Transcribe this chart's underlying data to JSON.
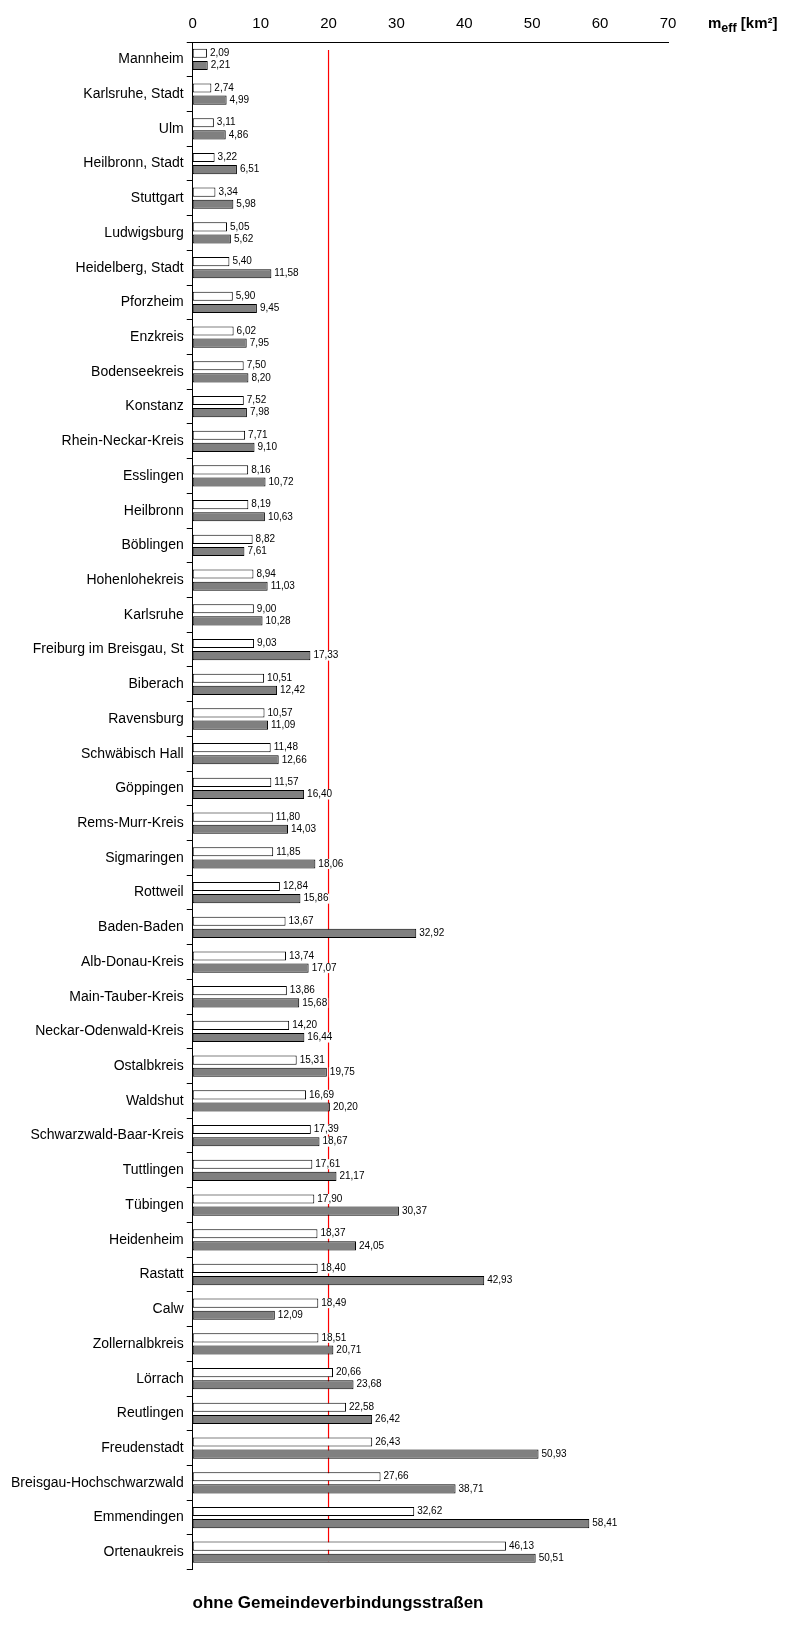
{
  "chart_data": {
    "type": "bar",
    "orientation": "horizontal",
    "title": "ohne Gemeindeverbindungsstraßen",
    "xlabel": "m$_{eff}$ [km²]",
    "categories": [
      "Mannheim",
      "Karlsruhe, Stadt",
      "Ulm",
      "Heilbronn, Stadt",
      "Stuttgart",
      "Ludwigsburg",
      "Heidelberg, Stadt",
      "Pforzheim",
      "Enzkreis",
      "Bodenseekreis",
      "Konstanz",
      "Rhein-Neckar-Kreis",
      "Esslingen",
      "Heilbronn",
      "Böblingen",
      "Hohenlohekreis",
      "Karlsruhe",
      "Freiburg im Breisgau, St",
      "Biberach",
      "Ravensburg",
      "Schwäbisch Hall",
      "Göppingen",
      "Rems-Murr-Kreis",
      "Sigmaringen",
      "Rottweil",
      "Baden-Baden",
      "Alb-Donau-Kreis",
      "Main-Tauber-Kreis",
      "Neckar-Odenwald-Kreis",
      "Ostalbkreis",
      "Waldshut",
      "Schwarzwald-Baar-Kreis",
      "Tuttlingen",
      "Tübingen",
      "Heidenheim",
      "Rastatt",
      "Calw",
      "Zollernalbkreis",
      "Lörrach",
      "Reutlingen",
      "Freudenstadt",
      "Breisgau-Hochschwarzwald",
      "Emmendingen",
      "Ortenaukreis"
    ],
    "series": [
      {
        "color": "#ffffff",
        "values": [
          2.09,
          2.74,
          3.11,
          3.22,
          3.34,
          5.05,
          5.4,
          5.9,
          6.02,
          7.5,
          7.52,
          7.71,
          8.16,
          8.19,
          8.82,
          8.94,
          9.0,
          9.03,
          10.51,
          10.57,
          11.48,
          11.57,
          11.8,
          11.85,
          12.84,
          13.67,
          13.74,
          13.86,
          14.2,
          15.31,
          16.69,
          17.39,
          17.61,
          17.9,
          18.37,
          18.4,
          18.49,
          18.51,
          20.66,
          22.58,
          26.43,
          27.66,
          32.62,
          46.13
        ],
        "value_labels": [
          "2,09",
          "2,74",
          "3,11",
          "3,22",
          "3,34",
          "5,05",
          "5,40",
          "5,90",
          "6,02",
          "7,50",
          "7,52",
          "7,71",
          "8,16",
          "8,19",
          "8,82",
          "8,94",
          "9,00",
          "9,03",
          "10,51",
          "10,57",
          "11,48",
          "11,57",
          "11,80",
          "11,85",
          "12,84",
          "13,67",
          "13,74",
          "13,86",
          "14,20",
          "15,31",
          "16,69",
          "17,39",
          "17,61",
          "17,90",
          "18,37",
          "18,40",
          "18,49",
          "18,51",
          "20,66",
          "22,58",
          "26,43",
          "27,66",
          "32,62",
          "46,13"
        ]
      },
      {
        "color": "#808080",
        "values": [
          2.21,
          4.99,
          4.86,
          6.51,
          5.98,
          5.62,
          11.58,
          9.45,
          7.95,
          8.2,
          7.98,
          9.1,
          10.72,
          10.63,
          7.61,
          11.03,
          10.28,
          17.33,
          12.42,
          11.09,
          12.66,
          16.4,
          14.03,
          18.06,
          15.86,
          32.92,
          17.07,
          15.68,
          16.44,
          19.75,
          20.2,
          18.67,
          21.17,
          30.37,
          24.05,
          42.93,
          12.09,
          20.71,
          23.68,
          26.42,
          50.93,
          38.71,
          58.41,
          50.51
        ],
        "value_labels": [
          "2,21",
          "4,99",
          "4,86",
          "6,51",
          "5,98",
          "5,62",
          "11,58",
          "9,45",
          "7,95",
          "8,20",
          "7,98",
          "9,10",
          "10,72",
          "10,63",
          "7,61",
          "11,03",
          "10,28",
          "17,33",
          "12,42",
          "11,09",
          "12,66",
          "16,40",
          "14,03",
          "18,06",
          "15,86",
          "32,92",
          "17,07",
          "15,68",
          "16,44",
          "19,75",
          "20,20",
          "18,67",
          "21,17",
          "30,37",
          "24,05",
          "42,93",
          "12,09",
          "20,71",
          "23,68",
          "26,42",
          "50,93",
          "38,71",
          "58,41",
          "50,51"
        ]
      }
    ],
    "xlim": [
      0,
      70
    ],
    "xticks": [
      0,
      10,
      20,
      30,
      40,
      50,
      60,
      70
    ],
    "ref_lines": [
      {
        "axis": "x",
        "value": 20,
        "color": "#ff0000"
      }
    ],
    "grid": false,
    "legend": false
  }
}
